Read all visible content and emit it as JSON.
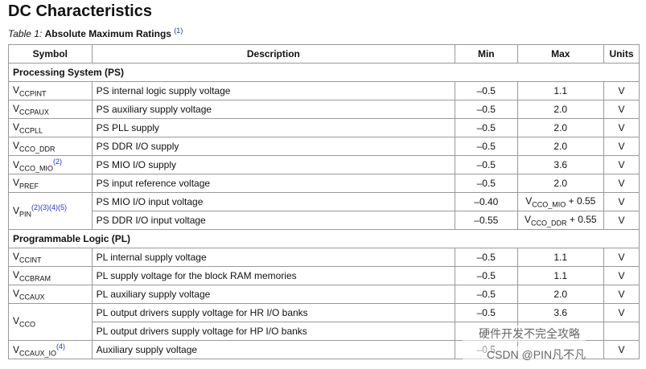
{
  "header": {
    "title": "DC Characteristics"
  },
  "caption": {
    "label": "Table  1:",
    "title": "Absolute Maximum Ratings",
    "note": "(1)"
  },
  "table": {
    "columns": [
      "Symbol",
      "Description",
      "Min",
      "Max",
      "Units"
    ],
    "sections": [
      {
        "title": "Processing System (PS)",
        "rows": [
          {
            "symbol": {
              "base": "V",
              "sub": "CCPINT"
            },
            "description": "PS internal logic supply voltage",
            "min": "–0.5",
            "max": "1.1",
            "units": "V"
          },
          {
            "symbol": {
              "base": "V",
              "sub": "CCPAUX"
            },
            "description": "PS auxiliary supply voltage",
            "min": "–0.5",
            "max": "2.0",
            "units": "V"
          },
          {
            "symbol": {
              "base": "V",
              "sub": "CCPLL"
            },
            "description": "PS PLL supply",
            "min": "–0.5",
            "max": "2.0",
            "units": "V"
          },
          {
            "symbol": {
              "base": "V",
              "sub": "CCO_DDR"
            },
            "description": "PS DDR I/O supply",
            "min": "–0.5",
            "max": "2.0",
            "units": "V"
          },
          {
            "symbol": {
              "base": "V",
              "sub": "CCO_MIO",
              "sup": "(2)"
            },
            "description": "PS MIO I/O supply",
            "min": "–0.5",
            "max": "3.6",
            "units": "V"
          },
          {
            "symbol": {
              "base": "V",
              "sub": "PREF"
            },
            "description": "PS input reference voltage",
            "min": "–0.5",
            "max": "2.0",
            "units": "V"
          },
          {
            "symbol": {
              "base": "V",
              "sub": "PIN",
              "sup": "(2)(3)(4)(5)"
            },
            "description": "PS MIO I/O input voltage",
            "min": "–0.40",
            "max": {
              "base": "V",
              "sub": "CCO_MIO",
              "tail": " + 0.55"
            },
            "units": "V"
          },
          {
            "description": "PS DDR I/O input voltage",
            "min": "–0.55",
            "max": {
              "base": "V",
              "sub": "CCO_DDR",
              "tail": " + 0.55"
            },
            "units": "V"
          }
        ]
      },
      {
        "title": "Programmable Logic (PL)",
        "rows": [
          {
            "symbol": {
              "base": "V",
              "sub": "CCINT"
            },
            "description": "PL internal supply voltage",
            "min": "–0.5",
            "max": "1.1",
            "units": "V"
          },
          {
            "symbol": {
              "base": "V",
              "sub": "CCBRAM"
            },
            "description": "PL supply voltage for the block RAM memories",
            "min": "–0.5",
            "max": "1.1",
            "units": "V"
          },
          {
            "symbol": {
              "base": "V",
              "sub": "CCAUX"
            },
            "description": "PL auxiliary supply voltage",
            "min": "–0.5",
            "max": "2.0",
            "units": "V"
          },
          {
            "symbol": {
              "base": "V",
              "sub": "CCO"
            },
            "description": "PL output drivers supply voltage for HR I/O banks",
            "min": "–0.5",
            "max": "3.6",
            "units": "V"
          },
          {
            "description": "PL output drivers supply voltage for HP I/O banks"
          },
          {
            "symbol": {
              "base": "V",
              "sub": "CCAUX_IO",
              "sup": "(4)"
            },
            "description": "Auxiliary supply voltage",
            "min": "–0.5",
            "units": "V"
          }
        ]
      }
    ]
  },
  "watermark": {
    "line1": "硬件开发不完全攻略",
    "line2": "CSDN @PIN凡不凡"
  }
}
